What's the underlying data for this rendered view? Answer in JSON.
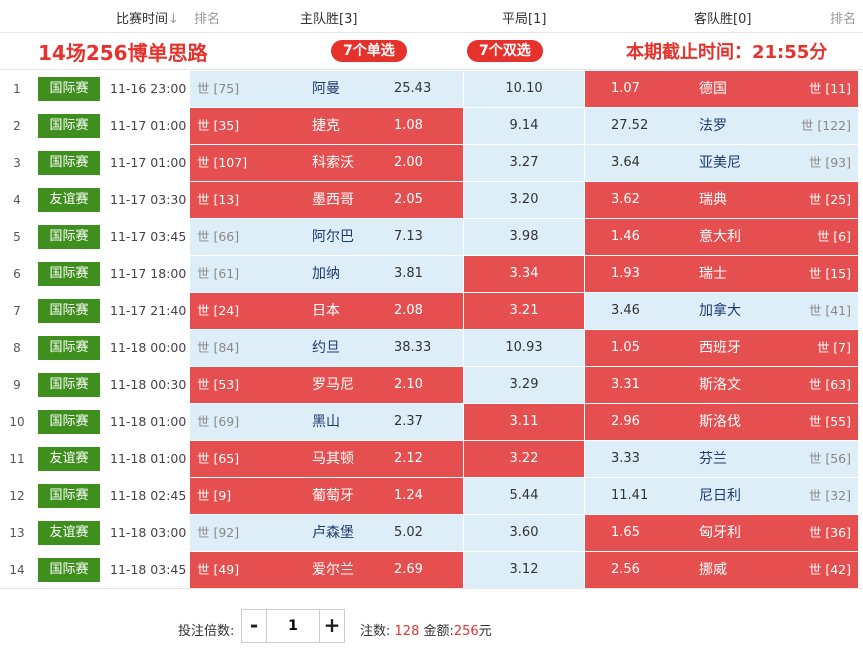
{
  "header": {
    "match_time": "比赛时间",
    "sort_icon": "↓",
    "rank_left": "排名",
    "home_win": "主队胜[3]",
    "draw": "平局[1]",
    "away_win": "客队胜[0]",
    "rank_right": "排名"
  },
  "banner": {
    "title": "14场256博单思路",
    "single": "7个单选",
    "double": "7个双选",
    "deadline": "本期截止时间：21:55分"
  },
  "colors": {
    "selected": "#e64f4f",
    "unselected": "#ddeef9",
    "tag": "#3f8f1f",
    "accent": "#e5322d"
  },
  "rows": [
    {
      "idx": "1",
      "tag": "国际赛",
      "time": "11-16 23:00",
      "home_rank": "世 [75]",
      "home": "阿曼",
      "home_odds": "25.43",
      "draw_odds": "10.10",
      "away_odds": "1.07",
      "away": "德国",
      "away_rank": "世 [11]",
      "sel": [
        false,
        false,
        true
      ]
    },
    {
      "idx": "2",
      "tag": "国际赛",
      "time": "11-17 01:00",
      "home_rank": "世 [35]",
      "home": "捷克",
      "home_odds": "1.08",
      "draw_odds": "9.14",
      "away_odds": "27.52",
      "away": "法罗",
      "away_rank": "世 [122]",
      "sel": [
        true,
        false,
        false
      ]
    },
    {
      "idx": "3",
      "tag": "国际赛",
      "time": "11-17 01:00",
      "home_rank": "世 [107]",
      "home": "科索沃",
      "home_odds": "2.00",
      "draw_odds": "3.27",
      "away_odds": "3.64",
      "away": "亚美尼",
      "away_rank": "世 [93]",
      "sel": [
        true,
        false,
        false
      ]
    },
    {
      "idx": "4",
      "tag": "友谊赛",
      "time": "11-17 03:30",
      "home_rank": "世 [13]",
      "home": "墨西哥",
      "home_odds": "2.05",
      "draw_odds": "3.20",
      "away_odds": "3.62",
      "away": "瑞典",
      "away_rank": "世 [25]",
      "sel": [
        true,
        false,
        true
      ]
    },
    {
      "idx": "5",
      "tag": "国际赛",
      "time": "11-17 03:45",
      "home_rank": "世 [66]",
      "home": "阿尔巴",
      "home_odds": "7.13",
      "draw_odds": "3.98",
      "away_odds": "1.46",
      "away": "意大利",
      "away_rank": "世 [6]",
      "sel": [
        false,
        false,
        true
      ]
    },
    {
      "idx": "6",
      "tag": "国际赛",
      "time": "11-17 18:00",
      "home_rank": "世 [61]",
      "home": "加纳",
      "home_odds": "3.81",
      "draw_odds": "3.34",
      "away_odds": "1.93",
      "away": "瑞士",
      "away_rank": "世 [15]",
      "sel": [
        false,
        true,
        true
      ]
    },
    {
      "idx": "7",
      "tag": "国际赛",
      "time": "11-17 21:40",
      "home_rank": "世 [24]",
      "home": "日本",
      "home_odds": "2.08",
      "draw_odds": "3.21",
      "away_odds": "3.46",
      "away": "加拿大",
      "away_rank": "世 [41]",
      "sel": [
        true,
        true,
        false
      ]
    },
    {
      "idx": "8",
      "tag": "国际赛",
      "time": "11-18 00:00",
      "home_rank": "世 [84]",
      "home": "约旦",
      "home_odds": "38.33",
      "draw_odds": "10.93",
      "away_odds": "1.05",
      "away": "西班牙",
      "away_rank": "世 [7]",
      "sel": [
        false,
        false,
        true
      ]
    },
    {
      "idx": "9",
      "tag": "国际赛",
      "time": "11-18 00:30",
      "home_rank": "世 [53]",
      "home": "罗马尼",
      "home_odds": "2.10",
      "draw_odds": "3.29",
      "away_odds": "3.31",
      "away": "斯洛文",
      "away_rank": "世 [63]",
      "sel": [
        true,
        false,
        true
      ]
    },
    {
      "idx": "10",
      "tag": "国际赛",
      "time": "11-18 01:00",
      "home_rank": "世 [69]",
      "home": "黑山",
      "home_odds": "2.37",
      "draw_odds": "3.11",
      "away_odds": "2.96",
      "away": "斯洛伐",
      "away_rank": "世 [55]",
      "sel": [
        false,
        true,
        true
      ]
    },
    {
      "idx": "11",
      "tag": "友谊赛",
      "time": "11-18 01:00",
      "home_rank": "世 [65]",
      "home": "马其顿",
      "home_odds": "2.12",
      "draw_odds": "3.22",
      "away_odds": "3.33",
      "away": "芬兰",
      "away_rank": "世 [56]",
      "sel": [
        true,
        true,
        false
      ]
    },
    {
      "idx": "12",
      "tag": "国际赛",
      "time": "11-18 02:45",
      "home_rank": "世 [9]",
      "home": "葡萄牙",
      "home_odds": "1.24",
      "draw_odds": "5.44",
      "away_odds": "11.41",
      "away": "尼日利",
      "away_rank": "世 [32]",
      "sel": [
        true,
        false,
        false
      ]
    },
    {
      "idx": "13",
      "tag": "友谊赛",
      "time": "11-18 03:00",
      "home_rank": "世 [92]",
      "home": "卢森堡",
      "home_odds": "5.02",
      "draw_odds": "3.60",
      "away_odds": "1.65",
      "away": "匈牙利",
      "away_rank": "世 [36]",
      "sel": [
        false,
        false,
        true
      ]
    },
    {
      "idx": "14",
      "tag": "国际赛",
      "time": "11-18 03:45",
      "home_rank": "世 [49]",
      "home": "爱尔兰",
      "home_odds": "2.69",
      "draw_odds": "3.12",
      "away_odds": "2.56",
      "away": "挪威",
      "away_rank": "世 [42]",
      "sel": [
        true,
        false,
        true
      ]
    }
  ],
  "footer": {
    "multiplier_label": "投注倍数:",
    "minus": "-",
    "multiplier_value": "1",
    "plus": "+",
    "bets_label": "注数:",
    "bets_value": "128",
    "amount_label": "金额:",
    "amount_value": "256",
    "amount_unit": "元"
  }
}
